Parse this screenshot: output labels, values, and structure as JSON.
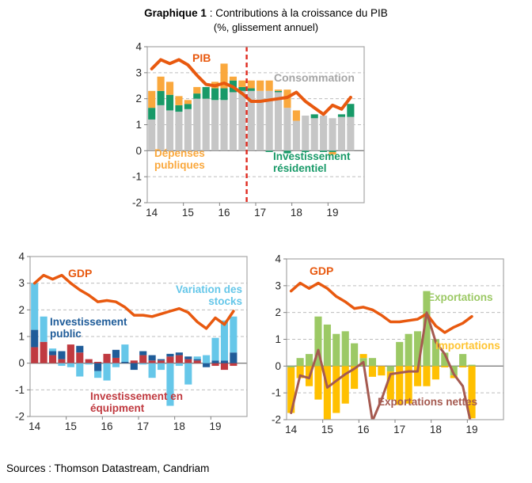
{
  "title": {
    "bold": "Graphique 1",
    "rest": " : Contributions à la croissance du PIB",
    "subtitle": "(%, glissement annuel)"
  },
  "sources": {
    "text": "Sources : Thomson Datastream, Candriam"
  },
  "colors": {
    "pib_line": "#E8590F",
    "consumption_bar": "#C6C6C6",
    "residential_bar": "#189A68",
    "public_spending_bar": "#FAA83D",
    "dashed_marker": "#E02B20",
    "stocks_bar": "#66C7E9",
    "public_invest_bar": "#1F5C99",
    "equipment_bar": "#C03A40",
    "exports_bar": "#9CC965",
    "imports_bar": "#FFC000",
    "net_exports_line": "#A55A50",
    "grid": "#BDBDBD",
    "axis_border": "#A6A6A6",
    "axis_text": "#262626"
  },
  "chart_data": [
    {
      "id": "pib-contributions",
      "type": "bar",
      "categories": [
        "2014Q1",
        "2014Q2",
        "2014Q3",
        "2014Q4",
        "2015Q1",
        "2015Q2",
        "2015Q3",
        "2015Q4",
        "2016Q1",
        "2016Q2",
        "2016Q3",
        "2016Q4",
        "2017Q1",
        "2017Q2",
        "2017Q3",
        "2017Q4",
        "2018Q1",
        "2018Q2",
        "2018Q3",
        "2018Q4",
        "2019Q1",
        "2019Q2",
        "2019Q3"
      ],
      "xticks": [
        "14",
        "15",
        "16",
        "17",
        "18",
        "19"
      ],
      "ylim": [
        -2,
        4
      ],
      "yticks": [
        4,
        3,
        2,
        1,
        0,
        -1,
        -2
      ],
      "grid": true,
      "legend_position": "in-plot-labels",
      "series": [
        {
          "name": "Consommation",
          "color": "#C6C6C6",
          "values": [
            1.2,
            1.75,
            1.55,
            1.5,
            1.6,
            2.0,
            2.0,
            1.95,
            1.95,
            2.25,
            2.3,
            2.3,
            2.3,
            2.3,
            2.25,
            1.65,
            1.15,
            1.35,
            1.25,
            1.35,
            1.25,
            1.3,
            1.3
          ]
        },
        {
          "name": "Investissement résidentiel",
          "color": "#189A68",
          "values": [
            0.45,
            0.55,
            0.6,
            0.25,
            0.2,
            0.2,
            0.45,
            0.45,
            0.45,
            0.45,
            0.15,
            0.1,
            0.0,
            -0.05,
            0.05,
            -0.1,
            0.0,
            -0.05,
            0.15,
            -0.05,
            -0.05,
            0.1,
            0.5
          ]
        },
        {
          "name": "Dépenses publiques",
          "color": "#FAA83D",
          "values": [
            0.65,
            0.55,
            0.5,
            0.35,
            0.15,
            0.25,
            0.0,
            0.25,
            0.95,
            0.15,
            0.25,
            0.3,
            0.4,
            0.4,
            0.05,
            0.7,
            0.4,
            0.0,
            0.0,
            0.0,
            -0.1,
            0.0,
            0.0
          ]
        }
      ],
      "lines": [
        {
          "name": "PIB",
          "color": "#E8590F",
          "width": 4,
          "values": [
            3.15,
            3.5,
            3.35,
            3.5,
            3.3,
            2.9,
            2.55,
            2.5,
            2.6,
            2.45,
            2.2,
            1.9,
            1.9,
            1.95,
            2.0,
            2.05,
            2.25,
            1.9,
            1.65,
            1.4,
            1.75,
            1.6,
            2.05
          ]
        }
      ],
      "vline": {
        "slot": 11.0,
        "color": "#E02B20"
      },
      "annotations": [
        {
          "id": "pib",
          "text": "PIB",
          "color": "#E8590F"
        },
        {
          "id": "consommation",
          "text": "Consommation",
          "color": "#A6A6A6"
        },
        {
          "id": "depenses",
          "text": "Dépenses publiques",
          "color": "#FAA83D"
        },
        {
          "id": "residentiel",
          "text": "Investissement résidentiel",
          "color": "#189A68"
        }
      ]
    },
    {
      "id": "investment-stocks",
      "type": "bar",
      "categories": [
        "2014Q1",
        "2014Q2",
        "2014Q3",
        "2014Q4",
        "2015Q1",
        "2015Q2",
        "2015Q3",
        "2015Q4",
        "2016Q1",
        "2016Q2",
        "2016Q3",
        "2016Q4",
        "2017Q1",
        "2017Q2",
        "2017Q3",
        "2017Q4",
        "2018Q1",
        "2018Q2",
        "2018Q3",
        "2018Q4",
        "2019Q1",
        "2019Q2",
        "2019Q3"
      ],
      "xticks": [
        "14",
        "15",
        "16",
        "17",
        "18",
        "19"
      ],
      "ylim": [
        -2,
        4
      ],
      "yticks": [
        4,
        3,
        2,
        1,
        0,
        -1,
        -2
      ],
      "grid": true,
      "series": [
        {
          "name": "Investissement en équipment",
          "color": "#C03A40",
          "values": [
            0.6,
            0.8,
            0.3,
            0.15,
            0.7,
            0.4,
            0.15,
            0.05,
            0.35,
            0.2,
            0.0,
            0.1,
            0.3,
            0.1,
            0.1,
            0.25,
            0.3,
            0.15,
            0.1,
            0.0,
            -0.1,
            -0.25,
            -0.1
          ]
        },
        {
          "name": "Investissement public",
          "color": "#1F5C99",
          "values": [
            0.65,
            0.0,
            0.15,
            0.3,
            0.0,
            0.25,
            0.0,
            -0.3,
            0.0,
            0.3,
            0.05,
            -0.25,
            0.15,
            0.2,
            0.05,
            0.1,
            0.1,
            0.1,
            0.05,
            -0.15,
            0.1,
            0.1,
            0.4
          ]
        },
        {
          "name": "Variation des stocks",
          "color": "#66C7E9",
          "values": [
            1.75,
            0.95,
            0.1,
            -0.1,
            -0.15,
            -0.5,
            -0.05,
            -0.25,
            -0.65,
            -0.15,
            0.65,
            0.0,
            -0.05,
            -0.55,
            -0.25,
            -1.6,
            -0.1,
            -0.8,
            0.1,
            0.3,
            0.85,
            1.5,
            1.35
          ]
        }
      ],
      "lines": [
        {
          "name": "GDP",
          "color": "#E8590F",
          "width": 3.5,
          "values": [
            3.0,
            3.3,
            3.15,
            3.3,
            3.0,
            2.75,
            2.55,
            2.3,
            2.35,
            2.3,
            2.1,
            1.8,
            1.8,
            1.75,
            1.85,
            1.95,
            2.05,
            1.9,
            1.55,
            1.3,
            1.7,
            1.45,
            1.95
          ]
        }
      ],
      "annotations": [
        {
          "id": "gdp",
          "text": "GDP",
          "color": "#E8590F"
        },
        {
          "id": "stocks",
          "text": "Variation des stocks",
          "color": "#66C7E9"
        },
        {
          "id": "public",
          "text": "Investissement public",
          "color": "#1F5C99"
        },
        {
          "id": "equipment",
          "text": "Investissement en équipment",
          "color": "#C03A40"
        }
      ]
    },
    {
      "id": "trade-contributions",
      "type": "bar",
      "categories": [
        "2014Q1",
        "2014Q2",
        "2014Q3",
        "2014Q4",
        "2015Q1",
        "2015Q2",
        "2015Q3",
        "2015Q4",
        "2016Q1",
        "2016Q2",
        "2016Q3",
        "2016Q4",
        "2017Q1",
        "2017Q2",
        "2017Q3",
        "2017Q4",
        "2018Q1",
        "2018Q2",
        "2018Q3",
        "2018Q4",
        "2019Q1"
      ],
      "xticks": [
        "14",
        "15",
        "16",
        "17",
        "18",
        "19"
      ],
      "ylim": [
        -2,
        4
      ],
      "yticks": [
        4,
        3,
        2,
        1,
        0,
        -1,
        -2
      ],
      "grid": true,
      "series": [
        {
          "name": "Exportations",
          "color": "#9CC965",
          "values": [
            -0.05,
            0.3,
            0.45,
            1.85,
            1.55,
            1.2,
            1.3,
            0.85,
            0.3,
            0.3,
            0.0,
            -0.2,
            0.9,
            1.2,
            1.3,
            2.8,
            1.0,
            0.5,
            -0.35,
            0.45,
            0.05
          ]
        },
        {
          "name": "Importations",
          "color": "#FFC000",
          "values": [
            -1.7,
            -0.45,
            -0.75,
            -1.25,
            -2.05,
            -1.75,
            -1.4,
            -0.85,
            0.15,
            -0.4,
            -0.35,
            -1.05,
            -1.45,
            -1.4,
            -0.75,
            -0.75,
            -0.5,
            -0.05,
            -0.1,
            -0.05,
            -1.95
          ]
        }
      ],
      "lines": [
        {
          "name": "GDP",
          "color": "#E8590F",
          "width": 3.5,
          "values": [
            2.8,
            3.1,
            2.9,
            3.1,
            2.9,
            2.6,
            2.4,
            2.15,
            2.2,
            2.1,
            1.9,
            1.65,
            1.65,
            1.7,
            1.75,
            1.95,
            1.5,
            1.25,
            1.45,
            1.6,
            1.85
          ]
        },
        {
          "name": "Exportations nettes",
          "color": "#A55A50",
          "width": 3,
          "values": [
            -1.75,
            -0.35,
            -0.45,
            0.6,
            -0.8,
            -0.55,
            -0.3,
            -0.1,
            0.15,
            -2.05,
            -1.25,
            -0.3,
            -0.25,
            -0.2,
            -0.2,
            2.0,
            0.9,
            0.45,
            -0.3,
            -0.75,
            -2.3
          ]
        }
      ],
      "annotations": [
        {
          "id": "gdp",
          "text": "GDP",
          "color": "#E8590F"
        },
        {
          "id": "exportations",
          "text": "Exportations",
          "color": "#9CC965"
        },
        {
          "id": "importations",
          "text": "Importations",
          "color": "#FFC431"
        },
        {
          "id": "nettes",
          "text": "Exportations nettes",
          "color": "#A55A50"
        }
      ]
    }
  ]
}
